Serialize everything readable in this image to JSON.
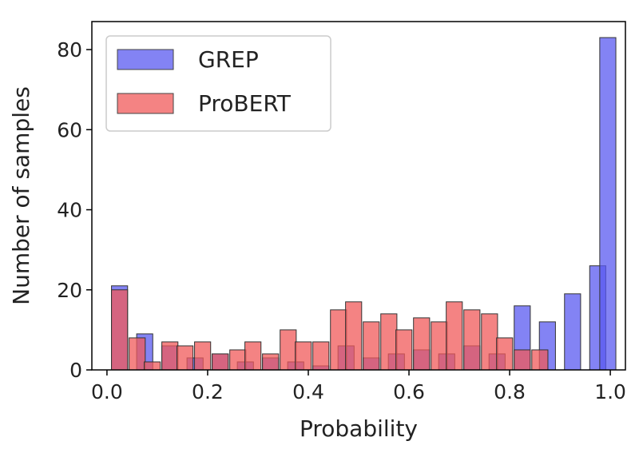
{
  "chart_data": {
    "type": "bar",
    "xlabel": "Probability",
    "ylabel": "Number of samples",
    "xlim": [
      -0.03,
      1.03
    ],
    "ylim": [
      0,
      87
    ],
    "x_ticks": [
      "0.0",
      "0.2",
      "0.4",
      "0.6",
      "0.8",
      "1.0"
    ],
    "y_ticks": [
      "0",
      "20",
      "40",
      "60",
      "80"
    ],
    "grid": false,
    "legend_position": "top-left",
    "bar_width": 0.032,
    "series": [
      {
        "name": "GREP",
        "color": "#5a5af0",
        "x": [
          0.025,
          0.075,
          0.125,
          0.175,
          0.225,
          0.275,
          0.325,
          0.375,
          0.425,
          0.475,
          0.525,
          0.575,
          0.625,
          0.675,
          0.725,
          0.775,
          0.825,
          0.875,
          0.925,
          0.975
        ],
        "values": [
          21,
          9,
          6,
          3,
          4,
          2,
          3,
          2,
          1,
          6,
          3,
          4,
          5,
          4,
          6,
          4,
          16,
          12,
          19,
          26
        ],
        "last_bar": {
          "x": 0.995,
          "value": 83
        }
      },
      {
        "name": "ProBERT",
        "color": "#f05a5a",
        "x": [
          0.025,
          0.06,
          0.09,
          0.125,
          0.155,
          0.19,
          0.225,
          0.26,
          0.29,
          0.325,
          0.36,
          0.39,
          0.425,
          0.46,
          0.49,
          0.525,
          0.56,
          0.59,
          0.625,
          0.66,
          0.69,
          0.725,
          0.76,
          0.79,
          0.825,
          0.86
        ],
        "values": [
          20,
          8,
          2,
          7,
          6,
          7,
          4,
          5,
          7,
          4,
          10,
          7,
          7,
          15,
          17,
          12,
          14,
          10,
          13,
          12,
          17,
          15,
          14,
          8,
          5,
          5
        ]
      }
    ]
  }
}
